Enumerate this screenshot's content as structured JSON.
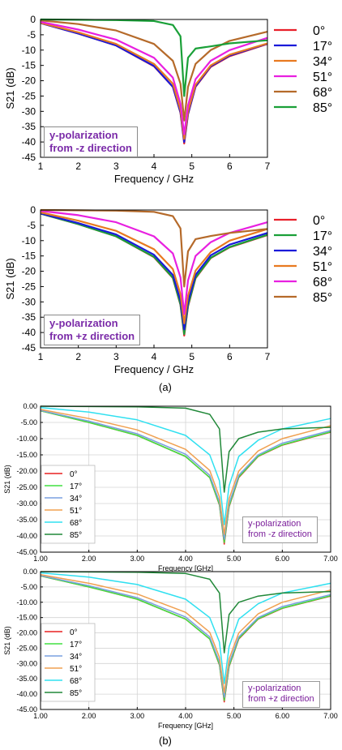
{
  "panel_labels": [
    "(a)",
    "(b)"
  ],
  "annotations": [
    [
      "y-polarization",
      "from -z direction"
    ],
    [
      "y-polarization",
      "from +z direction"
    ],
    [
      "y-polarization",
      "from -z direction"
    ],
    [
      "y-polarization",
      "from +z direction"
    ]
  ],
  "chart_data": [
    {
      "type": "line",
      "panel": "(a) top",
      "xlabel": "Frequency / GHz",
      "ylabel": "S21 (dB)",
      "xlim": [
        1,
        7
      ],
      "ylim": [
        -45,
        0
      ],
      "xticks": [
        "1",
        "2",
        "3",
        "4",
        "5",
        "6",
        "7"
      ],
      "yticks": [
        "0",
        "-5",
        "-10",
        "-15",
        "-20",
        "-25",
        "-30",
        "-35",
        "-40",
        "-45"
      ],
      "grid": false,
      "legend_position": "right",
      "x": [
        1,
        2,
        3,
        4,
        4.5,
        4.7,
        4.8,
        4.9,
        5.1,
        5.5,
        6,
        7
      ],
      "series": [
        {
          "name": "0°",
          "color": "#e8202a",
          "values": [
            -1.2,
            -4.6,
            -8.5,
            -15.3,
            -22,
            -30.5,
            -40.5,
            -31,
            -22,
            -15.5,
            -12,
            -8
          ]
        },
        {
          "name": "17°",
          "color": "#1a1ad9",
          "values": [
            -1.2,
            -4.6,
            -8.5,
            -15.2,
            -22,
            -30.3,
            -40,
            -30.8,
            -21.8,
            -15.3,
            -11.8,
            -7.9
          ]
        },
        {
          "name": "34°",
          "color": "#e87a20",
          "values": [
            -1.1,
            -4.2,
            -8,
            -14.5,
            -21,
            -29.5,
            -39,
            -30,
            -21.3,
            -15,
            -11.5,
            -7.8
          ]
        },
        {
          "name": "51°",
          "color": "#e820e0",
          "values": [
            -0.8,
            -3.3,
            -6.6,
            -12.5,
            -19,
            -27.5,
            -37.5,
            -28,
            -19.5,
            -13.5,
            -10,
            -6
          ]
        },
        {
          "name": "68°",
          "color": "#b56a2a",
          "values": [
            -0.3,
            -1.5,
            -3.6,
            -8,
            -13.5,
            -21,
            -33,
            -22,
            -14.5,
            -10,
            -7,
            -4
          ]
        },
        {
          "name": "85°",
          "color": "#1aa038",
          "values": [
            0,
            -0.1,
            -0.2,
            -0.5,
            -1.8,
            -5.5,
            -25,
            -12.5,
            -9.5,
            -8.8,
            -7.8,
            -6.8
          ]
        }
      ]
    },
    {
      "type": "line",
      "panel": "(a) bottom",
      "xlabel": "Frequency / GHz",
      "ylabel": "S21 (dB)",
      "xlim": [
        1,
        7
      ],
      "ylim": [
        -45,
        0
      ],
      "xticks": [
        "1",
        "2",
        "3",
        "4",
        "5",
        "6",
        "7"
      ],
      "yticks": [
        "0",
        "-5",
        "-10",
        "-15",
        "-20",
        "-25",
        "-30",
        "-35",
        "-40",
        "-45"
      ],
      "grid": false,
      "legend_position": "right",
      "x": [
        1,
        2,
        3,
        4,
        4.5,
        4.7,
        4.8,
        4.9,
        5.1,
        5.5,
        6,
        7
      ],
      "series": [
        {
          "name": "0°",
          "color": "#e8202a",
          "values": [
            -1.2,
            -4.6,
            -8.6,
            -15.4,
            -22.2,
            -31,
            -41,
            -31.5,
            -22.3,
            -15.7,
            -12.2,
            -8.2
          ]
        },
        {
          "name": "17°",
          "color": "#1aa038",
          "values": [
            -1.2,
            -4.6,
            -8.6,
            -15.3,
            -22.1,
            -30.8,
            -40.5,
            -31.2,
            -22.1,
            -15.6,
            -12.1,
            -8.1
          ]
        },
        {
          "name": "34°",
          "color": "#1a1ad9",
          "values": [
            -1.1,
            -4.3,
            -8,
            -14.6,
            -21.2,
            -29.6,
            -39,
            -30,
            -21.2,
            -14.8,
            -11.3,
            -7.5
          ]
        },
        {
          "name": "51°",
          "color": "#e87a20",
          "values": [
            -0.8,
            -3.5,
            -6.8,
            -12.8,
            -19.3,
            -27.5,
            -37,
            -28,
            -19.8,
            -13.8,
            -10,
            -6.2
          ]
        },
        {
          "name": "68°",
          "color": "#e820e0",
          "values": [
            -0.3,
            -1.7,
            -4,
            -8.6,
            -14.2,
            -22,
            -34,
            -23,
            -15,
            -10.5,
            -7.5,
            -4
          ]
        },
        {
          "name": "85°",
          "color": "#b56a2a",
          "values": [
            0,
            -0.1,
            -0.2,
            -0.6,
            -2,
            -6,
            -25,
            -13.5,
            -9.5,
            -8.5,
            -7.5,
            -6.2
          ]
        }
      ]
    },
    {
      "type": "line",
      "panel": "(b) top",
      "xlabel": "Frequency [GHz]",
      "ylabel": "S21 (dB)",
      "xlim": [
        1,
        7
      ],
      "ylim": [
        -45,
        0
      ],
      "xticks": [
        "1.00",
        "2.00",
        "3.00",
        "4.00",
        "5.00",
        "6.00",
        "7.00"
      ],
      "yticks": [
        "0.00",
        "-5.00",
        "-10.00",
        "-15.00",
        "-20.00",
        "-25.00",
        "-30.00",
        "-35.00",
        "-40.00",
        "-45.00"
      ],
      "grid": true,
      "legend_position": "bottom-left",
      "x": [
        1,
        2,
        3,
        4,
        4.5,
        4.7,
        4.8,
        4.9,
        5.1,
        5.5,
        6,
        7
      ],
      "series": [
        {
          "name": "0°",
          "color": "#e82020",
          "values": [
            -1.4,
            -5,
            -9,
            -15.5,
            -22,
            -30.5,
            -42.5,
            -31,
            -22,
            -15.5,
            -12,
            -8
          ]
        },
        {
          "name": "17°",
          "color": "#40e040",
          "values": [
            -1.4,
            -5,
            -9,
            -15.5,
            -22,
            -30.3,
            -42,
            -30.8,
            -21.8,
            -15.4,
            -11.9,
            -7.9
          ]
        },
        {
          "name": "34°",
          "color": "#7aa0e0",
          "values": [
            -1.3,
            -4.6,
            -8.5,
            -14.8,
            -21.3,
            -29.5,
            -41,
            -30,
            -21.3,
            -15,
            -11.4,
            -7.5
          ]
        },
        {
          "name": "51°",
          "color": "#f0a050",
          "values": [
            -1,
            -3.8,
            -7.3,
            -13.3,
            -19.8,
            -28,
            -39.5,
            -28.5,
            -20,
            -13.8,
            -10,
            -6
          ]
        },
        {
          "name": "68°",
          "color": "#30e0f0",
          "values": [
            -0.4,
            -1.8,
            -4.2,
            -9,
            -15,
            -23,
            -36.5,
            -24.5,
            -15.5,
            -10.5,
            -7,
            -3.8
          ]
        },
        {
          "name": "85°",
          "color": "#208838",
          "values": [
            0,
            -0.1,
            -0.2,
            -0.6,
            -2.5,
            -7,
            -26.5,
            -14,
            -10,
            -8,
            -7,
            -6.5
          ]
        }
      ]
    },
    {
      "type": "line",
      "panel": "(b) bottom",
      "xlabel": "Frequency [GHz]",
      "ylabel": "S21 (dB)",
      "xlim": [
        1,
        7
      ],
      "ylim": [
        -45,
        0
      ],
      "xticks": [
        "1.00",
        "2.00",
        "3.00",
        "4.00",
        "5.00",
        "6.00",
        "7.00"
      ],
      "yticks": [
        "0.00",
        "-5.00",
        "-10.00",
        "-15.00",
        "-20.00",
        "-25.00",
        "-30.00",
        "-35.00",
        "-40.00",
        "-45.00"
      ],
      "grid": true,
      "legend_position": "bottom-left",
      "x": [
        1,
        2,
        3,
        4,
        4.5,
        4.7,
        4.8,
        4.9,
        5.1,
        5.5,
        6,
        7
      ],
      "series": [
        {
          "name": "0°",
          "color": "#e82020",
          "values": [
            -1.4,
            -5,
            -9,
            -15.5,
            -22,
            -30.5,
            -42.5,
            -31,
            -22,
            -15.5,
            -12,
            -8
          ]
        },
        {
          "name": "17°",
          "color": "#40e040",
          "values": [
            -1.4,
            -5,
            -9,
            -15.5,
            -22,
            -30.3,
            -42,
            -30.8,
            -21.8,
            -15.4,
            -11.9,
            -7.9
          ]
        },
        {
          "name": "34°",
          "color": "#7aa0e0",
          "values": [
            -1.3,
            -4.6,
            -8.5,
            -14.8,
            -21.3,
            -29.5,
            -41,
            -30,
            -21.3,
            -15,
            -11.4,
            -7.5
          ]
        },
        {
          "name": "51°",
          "color": "#f0a050",
          "values": [
            -1,
            -3.8,
            -7.3,
            -13.3,
            -19.8,
            -28,
            -39.5,
            -28.5,
            -20,
            -13.8,
            -10,
            -6
          ]
        },
        {
          "name": "68°",
          "color": "#30e0f0",
          "values": [
            -0.4,
            -1.8,
            -4.2,
            -9,
            -15,
            -23,
            -36.5,
            -24.5,
            -15.5,
            -10.5,
            -7,
            -3.8
          ]
        },
        {
          "name": "85°",
          "color": "#208838",
          "values": [
            0,
            -0.1,
            -0.2,
            -0.6,
            -2.5,
            -7,
            -26.5,
            -14,
            -10,
            -8,
            -7,
            -6.5
          ]
        }
      ]
    }
  ]
}
